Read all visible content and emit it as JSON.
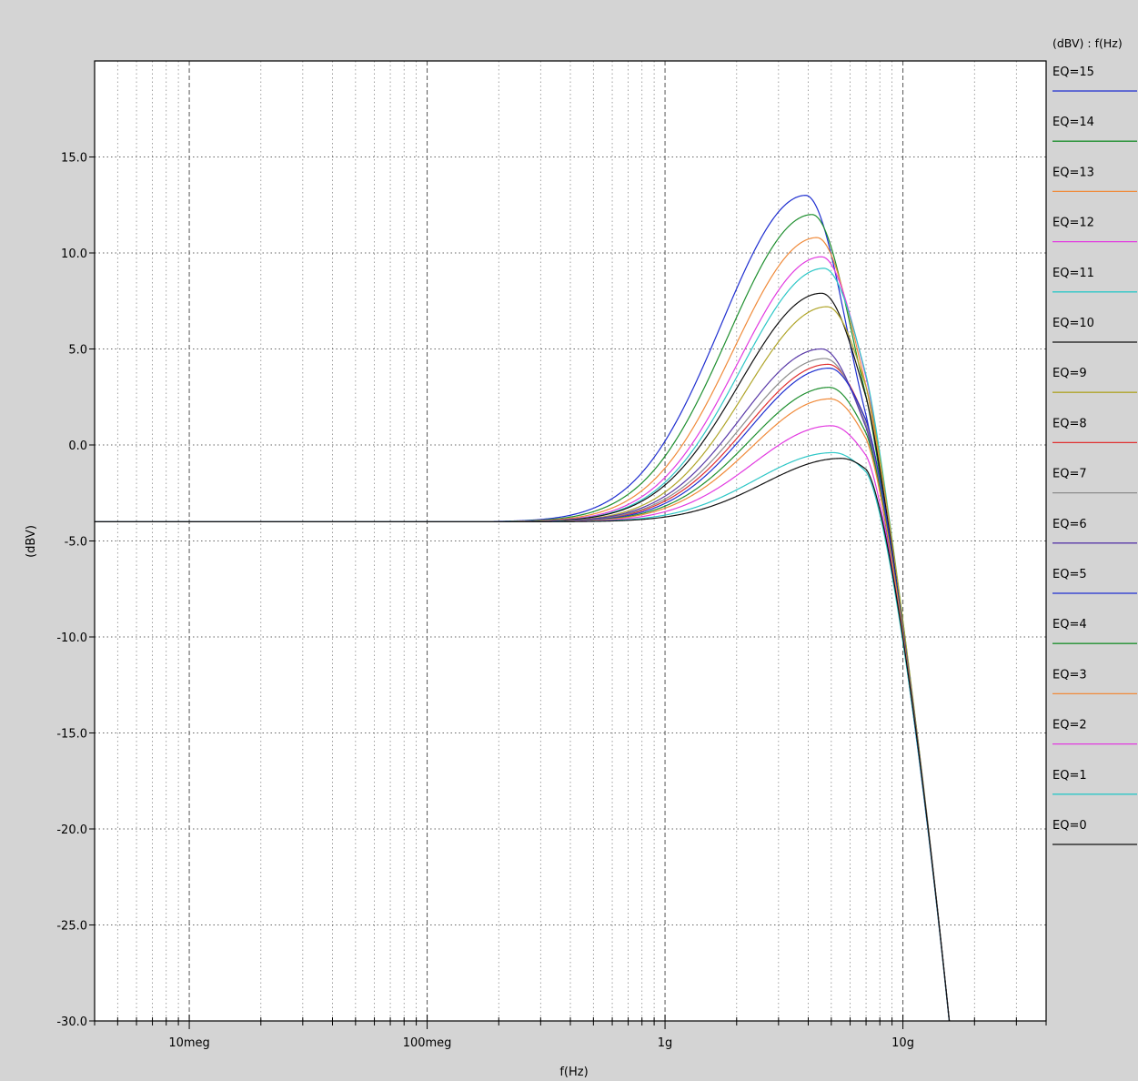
{
  "chart_data": {
    "type": "line",
    "title": "",
    "xlabel": "f(Hz)",
    "ylabel": "(dBV)",
    "legend_title": "(dBV) : f(Hz)",
    "legend_position": "right",
    "grid": true,
    "xscale": "log",
    "xlim": [
      4000000,
      40000000000
    ],
    "ylim": [
      -30,
      20
    ],
    "y_ticks": [
      15,
      10,
      5,
      0,
      -5,
      -10,
      -15,
      -20,
      -25,
      -30
    ],
    "y_tick_labels": [
      "15.0",
      "10.0",
      "5.0",
      "0.0",
      "-5.0",
      "-10.0",
      "-15.0",
      "-20.0",
      "-25.0",
      "-30.0"
    ],
    "x_ticks": [
      10000000,
      100000000,
      1000000000,
      10000000000
    ],
    "x_tick_labels": [
      "10meg",
      "100meg",
      "1g",
      "10g"
    ],
    "baseline_dbv": -4.0,
    "series": [
      {
        "name": "EQ=15",
        "color": "#1f2fd0",
        "peak_dbv": 13.0,
        "peak_freq_hz": 3900000000
      },
      {
        "name": "EQ=14",
        "color": "#1f8f2f",
        "peak_dbv": 12.0,
        "peak_freq_hz": 4150000000
      },
      {
        "name": "EQ=13",
        "color": "#f08a3a",
        "peak_dbv": 10.8,
        "peak_freq_hz": 4350000000
      },
      {
        "name": "EQ=12",
        "color": "#e23ae0",
        "peak_dbv": 9.8,
        "peak_freq_hz": 4550000000
      },
      {
        "name": "EQ=11",
        "color": "#2ec7c7",
        "peak_dbv": 9.2,
        "peak_freq_hz": 4650000000
      },
      {
        "name": "EQ=10",
        "color": "#111111",
        "peak_dbv": 7.9,
        "peak_freq_hz": 4550000000
      },
      {
        "name": "EQ=9",
        "color": "#b0a52a",
        "peak_dbv": 7.2,
        "peak_freq_hz": 4800000000
      },
      {
        "name": "EQ=8",
        "color": "#e03030",
        "peak_dbv": 4.2,
        "peak_freq_hz": 4850000000
      },
      {
        "name": "EQ=7",
        "color": "#8c8c8c",
        "peak_dbv": 4.5,
        "peak_freq_hz": 4700000000
      },
      {
        "name": "EQ=6",
        "color": "#5a3aa8",
        "peak_dbv": 5.0,
        "peak_freq_hz": 4550000000
      },
      {
        "name": "EQ=5",
        "color": "#1f2fd0",
        "peak_dbv": 4.0,
        "peak_freq_hz": 4900000000
      },
      {
        "name": "EQ=4",
        "color": "#1f8f2f",
        "peak_dbv": 3.0,
        "peak_freq_hz": 4900000000
      },
      {
        "name": "EQ=3",
        "color": "#f08a3a",
        "peak_dbv": 2.4,
        "peak_freq_hz": 4950000000
      },
      {
        "name": "EQ=2",
        "color": "#e23ae0",
        "peak_dbv": 1.0,
        "peak_freq_hz": 5000000000
      },
      {
        "name": "EQ=1",
        "color": "#2ec7c7",
        "peak_dbv": -0.4,
        "peak_freq_hz": 5100000000
      },
      {
        "name": "EQ=0",
        "color": "#111111",
        "peak_dbv": -0.7,
        "peak_freq_hz": 5500000000
      }
    ]
  }
}
